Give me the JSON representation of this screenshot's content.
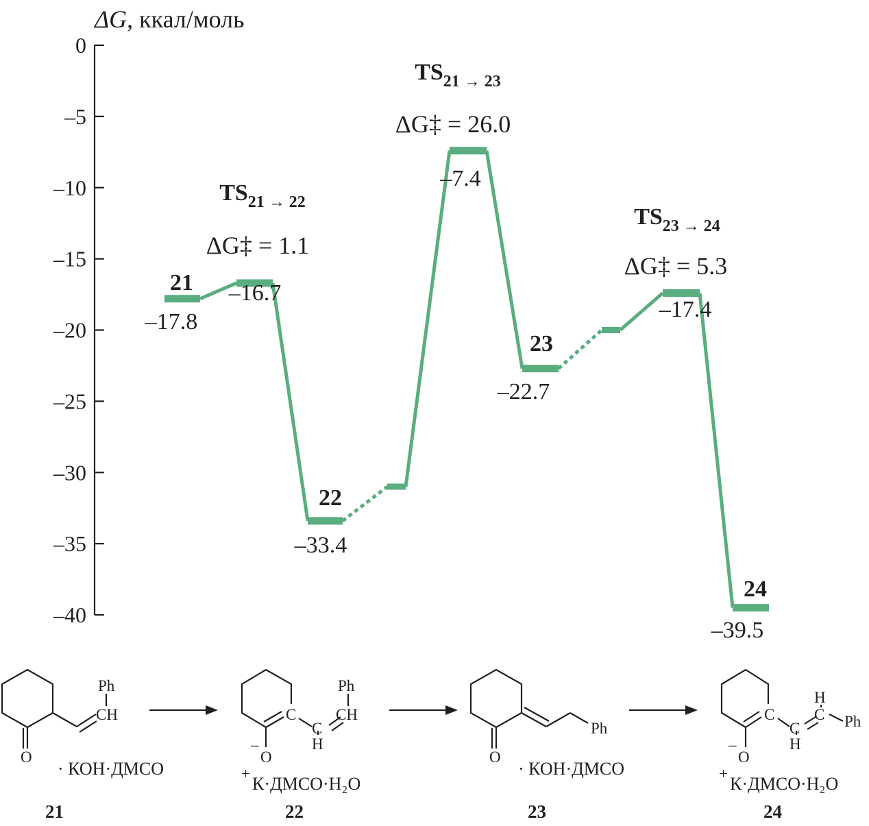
{
  "chart_data": {
    "type": "energy-profile",
    "ylabel_symbol": "ΔG",
    "ylabel_unit": ", ккал/моль",
    "ylim": [
      -40,
      0
    ],
    "yticks": [
      0,
      -5,
      -10,
      -15,
      -20,
      -25,
      -30,
      -35,
      -40
    ],
    "ytick_labels": [
      "0",
      "–5",
      "–10",
      "–15",
      "–20",
      "–25",
      "–30",
      "–35",
      "–40"
    ],
    "line_color": "#5aad7e",
    "levels": [
      {
        "id": "21",
        "value": -17.8,
        "label": "21",
        "value_text": "–17.8"
      },
      {
        "id": "ts21_22",
        "value": -16.7,
        "value_text": "–16.7",
        "ts_label": "TS",
        "ts_sub": "21 → 22",
        "barrier_text": "ΔG‡ = 1.1"
      },
      {
        "id": "22",
        "value": -33.4,
        "label": "22",
        "value_text": "–33.4"
      },
      {
        "id": "i22_23",
        "value": -31.0
      },
      {
        "id": "ts21_23",
        "value": -7.4,
        "value_text": "–7.4",
        "ts_label": "TS",
        "ts_sub": "21 → 23",
        "barrier_text": "ΔG‡ = 26.0"
      },
      {
        "id": "23",
        "value": -22.7,
        "label": "23",
        "value_text": "–22.7"
      },
      {
        "id": "i23_24",
        "value": -20.0
      },
      {
        "id": "ts23_24",
        "value": -17.4,
        "value_text": "–17.4",
        "ts_label": "TS",
        "ts_sub": "23 → 24",
        "barrier_text": "ΔG‡ = 5.3"
      },
      {
        "id": "24",
        "value": -39.5,
        "label": "24",
        "value_text": "–39.5"
      }
    ],
    "connections": [
      {
        "from": "21",
        "to": "ts21_22",
        "style": "solid"
      },
      {
        "from": "ts21_22",
        "to": "22",
        "style": "solid"
      },
      {
        "from": "22",
        "to": "i22_23",
        "style": "dotted"
      },
      {
        "from": "i22_23",
        "to": "ts21_23",
        "style": "solid"
      },
      {
        "from": "ts21_23",
        "to": "23",
        "style": "solid"
      },
      {
        "from": "23",
        "to": "i23_24",
        "style": "dotted"
      },
      {
        "from": "i23_24",
        "to": "ts23_24",
        "style": "solid"
      },
      {
        "from": "ts23_24",
        "to": "24",
        "style": "solid"
      }
    ]
  },
  "scheme": {
    "compounds": [
      {
        "number": "21",
        "adduct_charge": "",
        "adduct": "· КОН·ДМСО"
      },
      {
        "number": "22",
        "adduct_charge": "+",
        "adduct": "К·ДМСО·Н₂О"
      },
      {
        "number": "23",
        "adduct_charge": "",
        "adduct": "· КОН·ДМСО"
      },
      {
        "number": "24",
        "adduct_charge": "+",
        "adduct": "К·ДМСО·Н₂О"
      }
    ],
    "atom_labels": {
      "ph": "Ph",
      "ch": "CH",
      "c": "C",
      "h": "H",
      "o": "O",
      "minus": "–"
    }
  }
}
